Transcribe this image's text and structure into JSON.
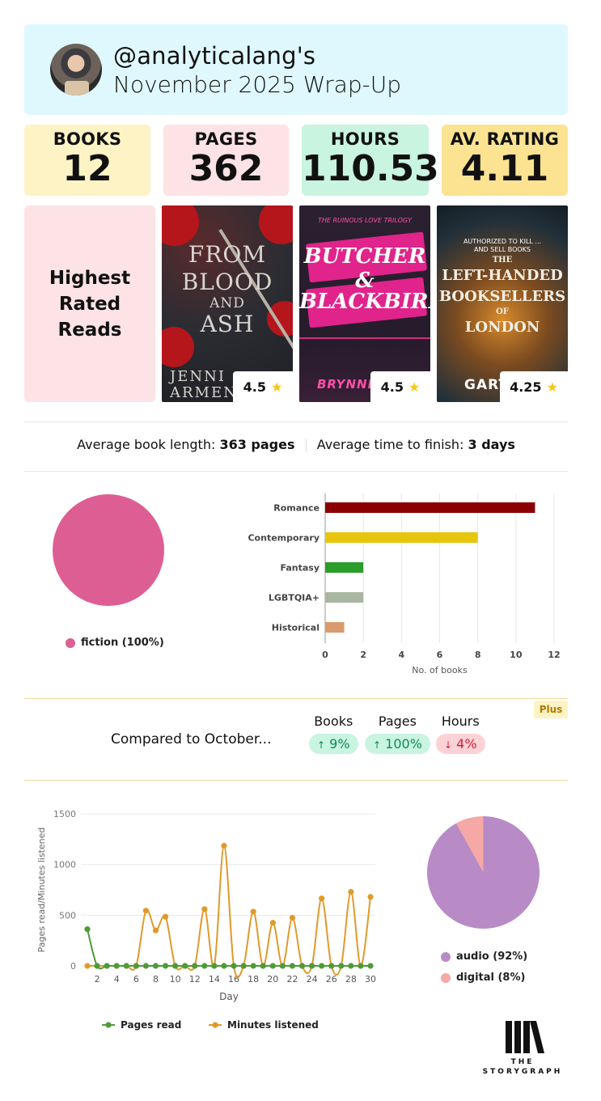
{
  "header": {
    "handle": "@analyticalang's",
    "title": "November 2025 Wrap-Up"
  },
  "stats": [
    {
      "label": "BOOKS",
      "value": "12"
    },
    {
      "label": "PAGES",
      "value": "362"
    },
    {
      "label": "HOURS",
      "value": "110.53"
    },
    {
      "label": "AV. RATING",
      "value": "4.11"
    }
  ],
  "highest_rated": {
    "heading_line1": "Highest",
    "heading_line2": "Rated",
    "heading_line3": "Reads",
    "books": [
      {
        "cover_title_1": "FROM",
        "cover_title_2": "BLOOD",
        "cover_title_3": "AND",
        "cover_title_4": "ASH",
        "cover_author_1": "JENNI",
        "cover_author_2": "ARMENT",
        "rating": "4.5"
      },
      {
        "cover_series": "THE RUINOUS LOVE TRILOGY",
        "cover_title_1": "BUTCHER &",
        "cover_title_2": "BLACKBIRD",
        "cover_author": "BRYNNE",
        "rating": "4.5"
      },
      {
        "cover_tagline_1": "AUTHORIZED TO KILL ...",
        "cover_tagline_2": "AND SELL BOOKS",
        "cover_title_1": "THE",
        "cover_title_2": "LEFT-HANDED",
        "cover_title_3": "BOOKSELLERS",
        "cover_title_4": "OF",
        "cover_title_5": "LONDON",
        "cover_author": "GART",
        "rating": "4.25"
      }
    ]
  },
  "averages": {
    "length_label": "Average book length:",
    "length_value": "363 pages",
    "time_label": "Average time to finish:",
    "time_value": "3 days"
  },
  "charts": {
    "colors": {
      "pie_fiction": "#dd5e93",
      "pages": "#4f9a3a",
      "minutes": "#e09a2a",
      "audio": "#b88bc7",
      "digital": "#f5a8a6"
    }
  },
  "chart_data": [
    {
      "type": "pie",
      "labels": [
        "fiction (100%)"
      ],
      "values": [
        100
      ]
    },
    {
      "type": "bar",
      "orientation": "horizontal",
      "categories": [
        "Romance",
        "Contemporary",
        "Fantasy",
        "LGBTQIA+",
        "Historical"
      ],
      "values": [
        11,
        8,
        2,
        2,
        1
      ],
      "colors": [
        "#8b0000",
        "#e7c50c",
        "#2a9d2a",
        "#a9b6a2",
        "#d99a6c"
      ],
      "xlabel": "No. of books",
      "xlim": [
        0,
        12
      ],
      "xticks": [
        "0",
        "2",
        "4",
        "6",
        "8",
        "10",
        "12"
      ],
      "grid": true
    },
    {
      "type": "line",
      "x": [
        1,
        2,
        3,
        4,
        5,
        6,
        7,
        8,
        9,
        10,
        11,
        12,
        13,
        14,
        15,
        16,
        17,
        18,
        19,
        20,
        21,
        22,
        23,
        24,
        25,
        26,
        27,
        28,
        29,
        30
      ],
      "series": [
        {
          "name": "Pages read",
          "values": [
            362,
            0,
            0,
            0,
            0,
            0,
            0,
            0,
            0,
            0,
            0,
            0,
            0,
            0,
            0,
            0,
            0,
            0,
            0,
            0,
            0,
            0,
            0,
            0,
            0,
            0,
            0,
            0,
            0,
            0
          ]
        },
        {
          "name": "Minutes listened",
          "values": [
            0,
            0,
            0,
            0,
            0,
            0,
            545,
            350,
            485,
            0,
            0,
            0,
            560,
            0,
            1185,
            0,
            0,
            535,
            0,
            425,
            0,
            475,
            0,
            0,
            665,
            0,
            0,
            730,
            0,
            680
          ]
        }
      ],
      "xlabel": "Day",
      "ylabel": "Pages read/Minutes listened",
      "ylim": [
        0,
        1500
      ],
      "yticks": [
        "0",
        "500",
        "1000",
        "1500"
      ],
      "xticks": [
        "2",
        "4",
        "6",
        "8",
        "10",
        "12",
        "14",
        "16",
        "18",
        "20",
        "22",
        "24",
        "26",
        "28",
        "30"
      ],
      "legend": "bottom"
    },
    {
      "type": "pie",
      "labels": [
        "audio (92%)",
        "digital (8%)"
      ],
      "values": [
        92,
        8
      ]
    }
  ],
  "comparison": {
    "plus_badge": "Plus",
    "text_prefix": "Compared to",
    "text_month": "October...",
    "items": [
      {
        "label": "Books",
        "arrow": "↑",
        "value": "9%",
        "direction": "up"
      },
      {
        "label": "Pages",
        "arrow": "↑",
        "value": "100%",
        "direction": "up"
      },
      {
        "label": "Hours",
        "arrow": "↓",
        "value": "4%",
        "direction": "down"
      }
    ]
  },
  "brand": {
    "word1": "THE",
    "word2": "STORYGRAPH"
  }
}
